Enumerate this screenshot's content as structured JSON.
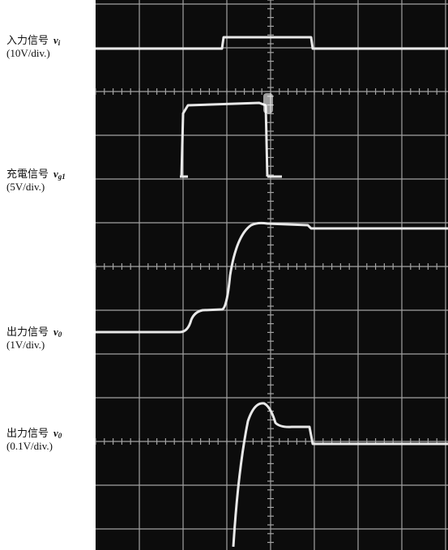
{
  "traces": [
    {
      "label": "入力信号",
      "symbol": "v",
      "subscript": "i",
      "scale": "(10V/div.)"
    },
    {
      "label": "充電信号",
      "symbol": "v",
      "subscript": "g1",
      "scale": "(5V/div.)"
    },
    {
      "label": "出力信号",
      "symbol": "v",
      "subscript": "0",
      "scale": "(1V/div.)"
    },
    {
      "label": "出力信号",
      "symbol": "v",
      "subscript": "0",
      "scale": "(0.1V/div.)"
    }
  ]
}
